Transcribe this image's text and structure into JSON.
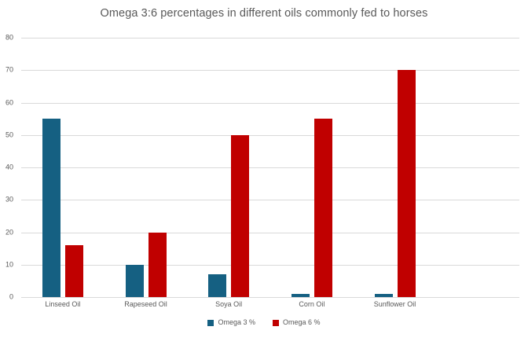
{
  "chart_data": {
    "type": "bar",
    "title": "Omega 3:6 percentages in different oils commonly fed to horses",
    "categories": [
      "Linseed Oil",
      "Rapeseed Oil",
      "Soya Oil",
      "Corn Oil",
      "Sunflower Oil"
    ],
    "series": [
      {
        "name": "Omega 3 %",
        "color": "#156082",
        "values": [
          55,
          10,
          7,
          1,
          1
        ]
      },
      {
        "name": "Omega 6 %",
        "color": "#C00000",
        "values": [
          16,
          20,
          50,
          55,
          70
        ]
      }
    ],
    "xlabel": "",
    "ylabel": "",
    "ylim": [
      0,
      80
    ],
    "yticks": [
      0,
      10,
      20,
      30,
      40,
      50,
      60,
      70,
      80
    ],
    "grid": true,
    "legend_position": "bottom",
    "trailing_empty_slots": 1
  },
  "styles": {
    "title_color": "#595959",
    "axis_label_color": "#595959",
    "gridline_color": "#D9D9D9",
    "background": "#FFFFFF"
  }
}
